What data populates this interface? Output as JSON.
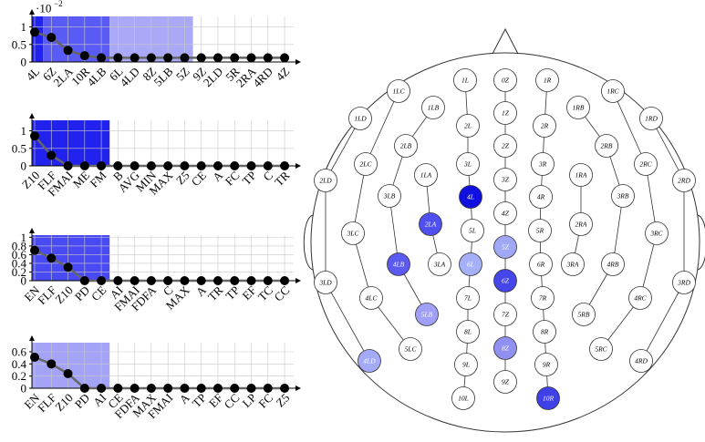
{
  "chart_data": [
    {
      "type": "line",
      "y_multiplier": {
        "base": "·10",
        "exponent": "−2"
      },
      "categories": [
        "4L",
        "6Z",
        "2LA",
        "10R",
        "4LB",
        "6L",
        "4LD",
        "8Z",
        "5LB",
        "5Z",
        "9Z",
        "2LD",
        "5R",
        "2RA",
        "4RD",
        "4Z"
      ],
      "values": [
        0.85,
        0.7,
        0.33,
        0.18,
        0.12,
        0.12,
        0.12,
        0.12,
        0.12,
        0.12,
        0.12,
        0.12,
        0.12,
        0.12,
        0.12,
        0.12
      ],
      "color": "#666666",
      "ylim": [
        0,
        1.3
      ],
      "yticks": [
        0,
        0.5,
        1
      ],
      "grid": true,
      "regions": [
        {
          "start": -0.5,
          "end": 0.5,
          "color": "#2222ee"
        },
        {
          "start": 0.5,
          "end": 4.5,
          "color": "#5a5af5"
        },
        {
          "start": 4.5,
          "end": 9.5,
          "color": "#a9a9f8"
        }
      ]
    },
    {
      "type": "line",
      "categories": [
        "Z10",
        "FLF",
        "FMAI",
        "ME",
        "FM",
        "B",
        "AVG",
        "MIN",
        "MAX",
        "Z5",
        "CE",
        "A",
        "FC",
        "TP",
        "C",
        "TR"
      ],
      "values": [
        0.85,
        0.3,
        0,
        0,
        0,
        0,
        0,
        0,
        0,
        0,
        0,
        0,
        0,
        0,
        0,
        0
      ],
      "color": "#666666",
      "ylim": [
        0,
        1.3
      ],
      "yticks": [
        0,
        0.5,
        1
      ],
      "grid": true,
      "regions": [
        {
          "start": -0.5,
          "end": 4.5,
          "color": "#2222ee"
        }
      ]
    },
    {
      "type": "line",
      "categories": [
        "EN",
        "FLF",
        "Z10",
        "PD",
        "CE",
        "AI",
        "FMAI",
        "FDFA",
        "C",
        "MAX",
        "A",
        "TR",
        "TP",
        "EF",
        "TC",
        "CC"
      ],
      "values": [
        0.7,
        0.52,
        0.31,
        0,
        0,
        0,
        0,
        0,
        0,
        0,
        0,
        0,
        0,
        0,
        0,
        0
      ],
      "color": "#666666",
      "ylim": [
        0,
        1.05
      ],
      "yticks": [
        0,
        0.2,
        0.4,
        0.6,
        0.8,
        1
      ],
      "grid": true,
      "regions": [
        {
          "start": -0.5,
          "end": 4.5,
          "color": "#4a4af5"
        }
      ]
    },
    {
      "type": "line",
      "categories": [
        "EN",
        "FLF",
        "Z10",
        "PD",
        "AI",
        "CE",
        "FDFA",
        "MAX",
        "FMAI",
        "A",
        "TP",
        "EF",
        "CC",
        "LP",
        "FC",
        "Z5"
      ],
      "values": [
        0.51,
        0.4,
        0.24,
        0,
        0,
        0,
        0,
        0,
        0,
        0,
        0,
        0,
        0,
        0,
        0,
        0
      ],
      "color": "#666666",
      "ylim": [
        0,
        0.75
      ],
      "yticks": [
        0,
        0.2,
        0.4,
        0.6
      ],
      "grid": true,
      "regions": [
        {
          "start": -0.5,
          "end": 4.5,
          "color": "#a3a3f8"
        }
      ]
    }
  ],
  "head_diagram": {
    "chains": [
      [
        {
          "label": "1LD"
        },
        {
          "label": "2LD"
        },
        {
          "label": "3LD"
        },
        {
          "label": "4LD",
          "fill": "#a3abf8"
        }
      ],
      [
        {
          "label": "1LC"
        },
        {
          "label": "2LC"
        },
        {
          "label": "3LC"
        },
        {
          "label": "4LC"
        },
        {
          "label": "5LC"
        }
      ],
      [
        {
          "label": "1LB"
        },
        {
          "label": "2LB"
        },
        {
          "label": "3LB"
        },
        {
          "label": "4LB",
          "fill": "#5a5af0"
        },
        {
          "label": "5LB",
          "fill": "#a0a0f8"
        }
      ],
      [
        {
          "label": "1LA"
        },
        {
          "label": "2LA",
          "fill": "#5050f0"
        },
        {
          "label": "3LA"
        }
      ],
      [
        {
          "label": "1L"
        },
        {
          "label": "2L"
        },
        {
          "label": "3L"
        },
        {
          "label": "4L",
          "fill": "#1010e0"
        },
        {
          "label": "5L"
        },
        {
          "label": "6L",
          "fill": "#a5b0f8"
        },
        {
          "label": "7L"
        },
        {
          "label": "8L"
        },
        {
          "label": "9L"
        },
        {
          "label": "10L"
        }
      ],
      [
        {
          "label": "0Z"
        },
        {
          "label": "1Z"
        },
        {
          "label": "2Z"
        },
        {
          "label": "3Z"
        },
        {
          "label": "4Z"
        },
        {
          "label": "5Z",
          "fill": "#a0a8f5"
        },
        {
          "label": "6Z",
          "fill": "#4545e8"
        },
        {
          "label": "7Z"
        },
        {
          "label": "8Z",
          "fill": "#9090f0"
        },
        {
          "label": "9Z"
        }
      ],
      [
        {
          "label": "1R"
        },
        {
          "label": "2R"
        },
        {
          "label": "3R"
        },
        {
          "label": "4R"
        },
        {
          "label": "5R"
        },
        {
          "label": "6R"
        },
        {
          "label": "7R"
        },
        {
          "label": "8R"
        },
        {
          "label": "9R"
        },
        {
          "label": "10R",
          "fill": "#4040e8"
        }
      ],
      [
        {
          "label": "1RA"
        },
        {
          "label": "2RA"
        },
        {
          "label": "3RA"
        }
      ],
      [
        {
          "label": "1RB"
        },
        {
          "label": "2RB"
        },
        {
          "label": "3RB"
        },
        {
          "label": "4RB"
        },
        {
          "label": "5RB"
        }
      ],
      [
        {
          "label": "1RC"
        },
        {
          "label": "2RC"
        },
        {
          "label": "3RC"
        },
        {
          "label": "4RC"
        },
        {
          "label": "5RC"
        }
      ],
      [
        {
          "label": "1RD"
        },
        {
          "label": "2RD"
        },
        {
          "label": "3RD"
        },
        {
          "label": "4RD"
        }
      ]
    ]
  }
}
